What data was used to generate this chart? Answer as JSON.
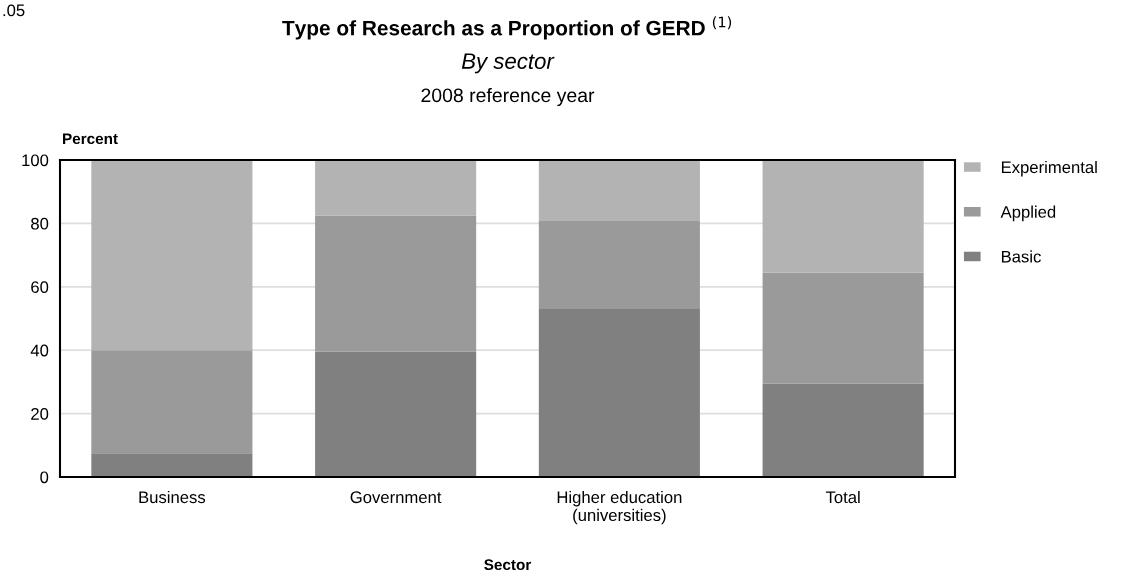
{
  "chart_data": {
    "type": "bar",
    "title": "Type of Research as a Proportion of GERD $^{(1)}$",
    "subtitle": "By sector\n2008 reference year",
    "xlabel": "Sector",
    "ylabel": "Percent",
    "annotations": [
      ".05"
    ],
    "categories": [
      "Business",
      "Government",
      "Higher education\n(universities)",
      "Total"
    ],
    "series": [
      {
        "name": "Basic",
        "color": "#808080",
        "values": [
          7.5,
          39.5,
          53,
          29.5
        ]
      },
      {
        "name": "Applied",
        "color": "#9a9a9a",
        "values": [
          32.5,
          43,
          28,
          35
        ]
      },
      {
        "name": "Experimental",
        "color": "#b3b3b3",
        "values": [
          60,
          17.5,
          19,
          35.5
        ]
      }
    ],
    "stacked": true,
    "ylim": [
      0,
      100
    ],
    "yticks": [
      0,
      20,
      40,
      60,
      80,
      100
    ],
    "grid": "y",
    "legend": "top right"
  }
}
